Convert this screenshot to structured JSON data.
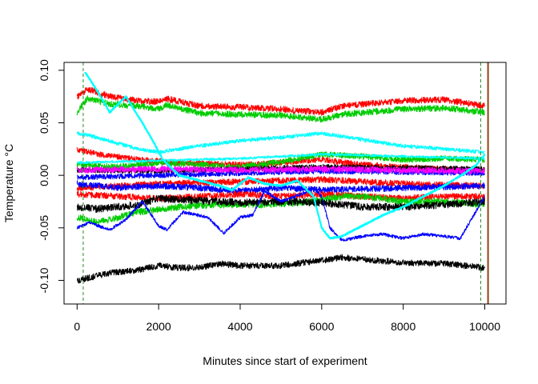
{
  "chart_data": {
    "type": "line",
    "title": "",
    "xlabel": "Minutes since start of experiment",
    "ylabel": "Temperature °C",
    "xlim": [
      -320,
      10520
    ],
    "ylim": [
      -0.1225,
      0.1075
    ],
    "x_ticks": [
      0,
      2000,
      4000,
      6000,
      8000,
      10000
    ],
    "x_tick_labels": [
      "0",
      "2000",
      "4000",
      "6000",
      "8000",
      "10000"
    ],
    "y_ticks": [
      -0.1,
      -0.05,
      0.0,
      0.05,
      0.1
    ],
    "y_tick_labels": [
      "-0.10",
      "-0.05",
      "0.00",
      "0.05",
      "0.10"
    ],
    "grid": false,
    "legend": "none",
    "reference_lines": [
      {
        "x": 150,
        "color": "#228B22",
        "style": "dashed"
      },
      {
        "x": 9900,
        "color": "#228B22",
        "style": "dashed"
      },
      {
        "x": 10080,
        "color": "#8B4513",
        "style": "solid"
      }
    ],
    "series": [
      {
        "color": "#ff0000",
        "noise": 0.003,
        "points": [
          [
            0,
            0.075
          ],
          [
            250,
            0.082
          ],
          [
            800,
            0.075
          ],
          [
            1500,
            0.071
          ],
          [
            2000,
            0.07
          ],
          [
            2200,
            0.073
          ],
          [
            3000,
            0.066
          ],
          [
            4000,
            0.065
          ],
          [
            5000,
            0.063
          ],
          [
            6000,
            0.06
          ],
          [
            6500,
            0.066
          ],
          [
            8000,
            0.071
          ],
          [
            9000,
            0.072
          ],
          [
            10000,
            0.066
          ]
        ]
      },
      {
        "color": "#00cc00",
        "noise": 0.003,
        "points": [
          [
            0,
            0.06
          ],
          [
            250,
            0.073
          ],
          [
            800,
            0.068
          ],
          [
            1500,
            0.066
          ],
          [
            2000,
            0.063
          ],
          [
            2200,
            0.067
          ],
          [
            3000,
            0.059
          ],
          [
            4000,
            0.058
          ],
          [
            5000,
            0.057
          ],
          [
            6000,
            0.053
          ],
          [
            6500,
            0.058
          ],
          [
            8000,
            0.063
          ],
          [
            9000,
            0.064
          ],
          [
            10000,
            0.06
          ]
        ]
      },
      {
        "color": "#00ffff",
        "noise": 0.0018,
        "points": [
          [
            0,
            0.04
          ],
          [
            300,
            0.038
          ],
          [
            1500,
            0.025
          ],
          [
            2000,
            0.022
          ],
          [
            3000,
            0.028
          ],
          [
            4000,
            0.033
          ],
          [
            5000,
            0.036
          ],
          [
            6000,
            0.04
          ],
          [
            7000,
            0.034
          ],
          [
            8000,
            0.028
          ],
          [
            9000,
            0.025
          ],
          [
            10000,
            0.022
          ]
        ]
      },
      {
        "color": "#ff0000",
        "noise": 0.0028,
        "points": [
          [
            0,
            0.025
          ],
          [
            500,
            0.02
          ],
          [
            1500,
            0.015
          ],
          [
            2500,
            0.012
          ],
          [
            4000,
            0.01
          ],
          [
            5000,
            0.012
          ],
          [
            6000,
            0.015
          ],
          [
            7000,
            0.01
          ],
          [
            8000,
            0.008
          ],
          [
            9000,
            0.006
          ],
          [
            10000,
            0.004
          ]
        ]
      },
      {
        "color": "#00cc00",
        "noise": 0.0028,
        "points": [
          [
            0,
            0.01
          ],
          [
            1000,
            0.008
          ],
          [
            2000,
            0.012
          ],
          [
            3000,
            0.01
          ],
          [
            4000,
            0.008
          ],
          [
            5000,
            0.013
          ],
          [
            6000,
            0.02
          ],
          [
            7000,
            0.018
          ],
          [
            8000,
            0.015
          ],
          [
            9000,
            0.016
          ],
          [
            10000,
            0.015
          ]
        ]
      },
      {
        "color": "#000000",
        "noise": 0.0025,
        "points": [
          [
            0,
            0.005
          ],
          [
            2000,
            0.004
          ],
          [
            4000,
            0.006
          ],
          [
            6000,
            0.008
          ],
          [
            8000,
            0.007
          ],
          [
            10000,
            0.006
          ]
        ]
      },
      {
        "color": "#0000ff",
        "noise": 0.0025,
        "points": [
          [
            0,
            -0.002
          ],
          [
            2000,
            0.0
          ],
          [
            4000,
            0.002
          ],
          [
            6000,
            0.004
          ],
          [
            8000,
            0.003
          ],
          [
            10000,
            0.002
          ]
        ]
      },
      {
        "color": "#00ffff",
        "noise": 0.0012,
        "points": [
          [
            0,
            0.012
          ],
          [
            2000,
            0.014
          ],
          [
            4000,
            0.016
          ],
          [
            6000,
            0.02
          ],
          [
            8000,
            0.018
          ],
          [
            10000,
            0.016
          ]
        ]
      },
      {
        "color": "#ff00ff",
        "noise": 0.003,
        "points": [
          [
            0,
            0.005
          ],
          [
            2000,
            0.006
          ],
          [
            4000,
            0.005
          ],
          [
            6000,
            0.006
          ],
          [
            8000,
            0.005
          ],
          [
            10000,
            0.004
          ]
        ]
      },
      {
        "color": "#ff0000",
        "noise": 0.003,
        "points": [
          [
            0,
            -0.012
          ],
          [
            2000,
            -0.008
          ],
          [
            4000,
            -0.006
          ],
          [
            6000,
            -0.004
          ],
          [
            8000,
            -0.008
          ],
          [
            10000,
            -0.01
          ]
        ]
      },
      {
        "color": "#0000ff",
        "noise": 0.003,
        "points": [
          [
            0,
            -0.008
          ],
          [
            1000,
            -0.012
          ],
          [
            2000,
            -0.01
          ],
          [
            3000,
            -0.012
          ],
          [
            4000,
            -0.015
          ],
          [
            5000,
            -0.012
          ],
          [
            6000,
            -0.014
          ],
          [
            8000,
            -0.012
          ],
          [
            10000,
            -0.01
          ]
        ]
      },
      {
        "color": "#ff0000",
        "noise": 0.003,
        "points": [
          [
            0,
            -0.018
          ],
          [
            1000,
            -0.02
          ],
          [
            2000,
            -0.022
          ],
          [
            3000,
            -0.02
          ],
          [
            4000,
            -0.018
          ],
          [
            5000,
            -0.02
          ],
          [
            6000,
            -0.018
          ],
          [
            7000,
            -0.02
          ],
          [
            8000,
            -0.022
          ],
          [
            9000,
            -0.02
          ],
          [
            10000,
            -0.02
          ]
        ]
      },
      {
        "color": "#00cc00",
        "noise": 0.0032,
        "points": [
          [
            0,
            -0.04
          ],
          [
            500,
            -0.045
          ],
          [
            1500,
            -0.035
          ],
          [
            2500,
            -0.03
          ],
          [
            3500,
            -0.028
          ],
          [
            4500,
            -0.028
          ],
          [
            5500,
            -0.026
          ],
          [
            6500,
            -0.02
          ],
          [
            7000,
            -0.02
          ],
          [
            8000,
            -0.025
          ],
          [
            9000,
            -0.025
          ],
          [
            10000,
            -0.028
          ]
        ]
      },
      {
        "color": "#000000",
        "noise": 0.0035,
        "points": [
          [
            0,
            -0.03
          ],
          [
            500,
            -0.032
          ],
          [
            1000,
            -0.03
          ],
          [
            1500,
            -0.028
          ],
          [
            2000,
            -0.022
          ],
          [
            3000,
            -0.024
          ],
          [
            4000,
            -0.026
          ],
          [
            5000,
            -0.025
          ],
          [
            6000,
            -0.026
          ],
          [
            7000,
            -0.03
          ],
          [
            8000,
            -0.03
          ],
          [
            9000,
            -0.028
          ],
          [
            10000,
            -0.025
          ]
        ]
      },
      {
        "color": "#0000ff",
        "noise": 0.0015,
        "points": [
          [
            0,
            -0.05
          ],
          [
            300,
            -0.045
          ],
          [
            800,
            -0.052
          ],
          [
            1200,
            -0.042
          ],
          [
            1600,
            -0.025
          ],
          [
            2000,
            -0.048
          ],
          [
            2200,
            -0.052
          ],
          [
            2600,
            -0.035
          ],
          [
            3200,
            -0.04
          ],
          [
            3600,
            -0.055
          ],
          [
            4000,
            -0.04
          ],
          [
            4300,
            -0.038
          ],
          [
            4600,
            -0.015
          ],
          [
            5000,
            -0.025
          ],
          [
            5500,
            -0.018
          ],
          [
            5800,
            -0.012
          ],
          [
            6000,
            -0.02
          ],
          [
            6200,
            -0.05
          ],
          [
            6500,
            -0.062
          ],
          [
            7000,
            -0.058
          ],
          [
            7500,
            -0.056
          ],
          [
            8000,
            -0.06
          ],
          [
            8500,
            -0.056
          ],
          [
            9000,
            -0.058
          ],
          [
            9400,
            -0.06
          ],
          [
            9700,
            -0.04
          ],
          [
            10000,
            -0.02
          ]
        ]
      },
      {
        "color": "#000000",
        "noise": 0.003,
        "points": [
          [
            0,
            -0.1
          ],
          [
            250,
            -0.098
          ],
          [
            800,
            -0.093
          ],
          [
            1500,
            -0.09
          ],
          [
            2000,
            -0.086
          ],
          [
            2500,
            -0.088
          ],
          [
            3000,
            -0.088
          ],
          [
            3500,
            -0.084
          ],
          [
            4000,
            -0.086
          ],
          [
            5000,
            -0.086
          ],
          [
            6000,
            -0.081
          ],
          [
            6500,
            -0.078
          ],
          [
            7000,
            -0.08
          ],
          [
            8000,
            -0.083
          ],
          [
            9000,
            -0.084
          ],
          [
            10000,
            -0.088
          ]
        ]
      },
      {
        "color": "#00ffff",
        "noise": 0.0006,
        "points": [
          [
            200,
            0.098
          ],
          [
            500,
            0.08
          ],
          [
            800,
            0.06
          ],
          [
            1200,
            0.075
          ],
          [
            1600,
            0.05
          ],
          [
            1900,
            0.03
          ],
          [
            2100,
            0.015
          ],
          [
            2500,
            0.0
          ],
          [
            3000,
            -0.005
          ],
          [
            3500,
            -0.01
          ],
          [
            3800,
            -0.014
          ],
          [
            4200,
            -0.002
          ],
          [
            4600,
            -0.008
          ],
          [
            5000,
            -0.01
          ],
          [
            5400,
            -0.005
          ],
          [
            5800,
            -0.02
          ],
          [
            6000,
            -0.05
          ],
          [
            6200,
            -0.06
          ],
          [
            6500,
            -0.058
          ],
          [
            7000,
            -0.048
          ],
          [
            7500,
            -0.038
          ],
          [
            8000,
            -0.03
          ],
          [
            8500,
            -0.02
          ],
          [
            9000,
            -0.01
          ],
          [
            9500,
            0.002
          ],
          [
            9800,
            0.01
          ],
          [
            10000,
            0.02
          ]
        ]
      }
    ]
  }
}
